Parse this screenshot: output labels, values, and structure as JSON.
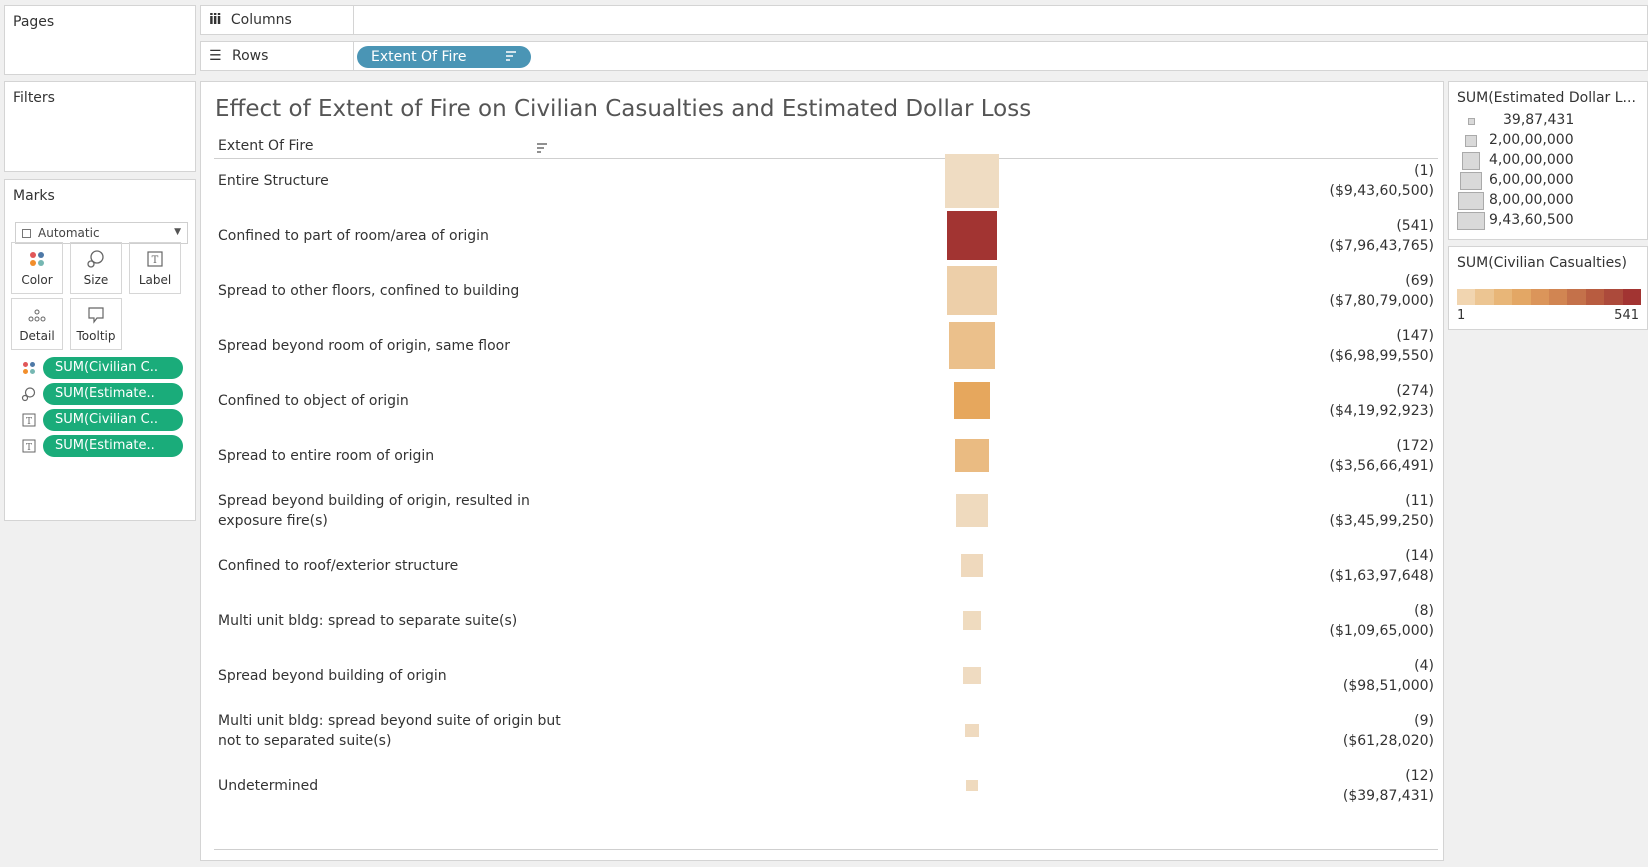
{
  "shelves": {
    "pages": "Pages",
    "filters": "Filters",
    "columns": "Columns",
    "rows": "Rows",
    "rows_pill": "Extent Of Fire"
  },
  "marks": {
    "title": "Marks",
    "type": "Automatic",
    "buttons": [
      "Color",
      "Size",
      "Label",
      "Detail",
      "Tooltip"
    ],
    "pills": [
      {
        "icon": "color-dots-icon",
        "label": "SUM(Civilian C.."
      },
      {
        "icon": "size-icon",
        "label": "SUM(Estimate.."
      },
      {
        "icon": "label-icon",
        "label": "SUM(Civilian C.."
      },
      {
        "icon": "label-icon",
        "label": "SUM(Estimate.."
      }
    ]
  },
  "viz": {
    "title": "Effect of  Extent of Fire on Civilian Casualties and Estimated Dollar Loss",
    "column_header": "Extent Of Fire"
  },
  "chart_data": {
    "type": "table",
    "rows": [
      {
        "label": "Entire Structure",
        "casualties": 1,
        "casualties_label": "(1)",
        "loss": 94360500,
        "loss_label": "($9,43,60,500)"
      },
      {
        "label": "Confined to part of room/area of origin",
        "casualties": 541,
        "casualties_label": "(541)",
        "loss": 79643765,
        "loss_label": "($7,96,43,765)"
      },
      {
        "label": "Spread to other floors, confined to building",
        "casualties": 69,
        "casualties_label": "(69)",
        "loss": 78079000,
        "loss_label": "($7,80,79,000)"
      },
      {
        "label": "Spread beyond room of origin, same floor",
        "casualties": 147,
        "casualties_label": "(147)",
        "loss": 69899550,
        "loss_label": "($6,98,99,550)"
      },
      {
        "label": "Confined to object of origin",
        "casualties": 274,
        "casualties_label": "(274)",
        "loss": 41992923,
        "loss_label": "($4,19,92,923)"
      },
      {
        "label": "Spread to entire room of origin",
        "casualties": 172,
        "casualties_label": "(172)",
        "loss": 35666491,
        "loss_label": "($3,56,66,491)"
      },
      {
        "label": "Spread beyond building of origin, resulted in exposure fire(s)",
        "casualties": 11,
        "casualties_label": "(11)",
        "loss": 34599250,
        "loss_label": "($3,45,99,250)"
      },
      {
        "label": "Confined to roof/exterior structure",
        "casualties": 14,
        "casualties_label": "(14)",
        "loss": 16397648,
        "loss_label": "($1,63,97,648)"
      },
      {
        "label": "Multi unit bldg: spread to separate suite(s)",
        "casualties": 8,
        "casualties_label": "(8)",
        "loss": 10965000,
        "loss_label": "($1,09,65,000)"
      },
      {
        "label": "Spread beyond building of origin",
        "casualties": 4,
        "casualties_label": "(4)",
        "loss": 9851000,
        "loss_label": "($98,51,000)"
      },
      {
        "label": "Multi unit bldg: spread beyond suite of origin but not to separated suite(s)",
        "casualties": 9,
        "casualties_label": "(9)",
        "loss": 6128020,
        "loss_label": "($61,28,020)"
      },
      {
        "label": "Undetermined",
        "casualties": 12,
        "casualties_label": "(12)",
        "loss": 3987431,
        "loss_label": "($39,87,431)"
      }
    ],
    "color_scale": {
      "min": 1,
      "max": 541,
      "low_color": "#efdcc2",
      "mid_color": "#e7a85d",
      "high_color": "#a23432"
    },
    "size_scale": {
      "min": 3987431,
      "max": 94360500
    }
  },
  "legends": {
    "size_title": "SUM(Estimated Dollar L...",
    "size_items": [
      {
        "label": "39,87,431",
        "value": 3987431
      },
      {
        "label": "2,00,00,000",
        "value": 20000000
      },
      {
        "label": "4,00,00,000",
        "value": 40000000
      },
      {
        "label": "6,00,00,000",
        "value": 60000000
      },
      {
        "label": "8,00,00,000",
        "value": 80000000
      },
      {
        "label": "9,43,60,500",
        "value": 94360500
      }
    ],
    "color_title": "SUM(Civilian Casualties)",
    "color_min": "1",
    "color_max": "541",
    "color_steps": [
      "#f1d5b0",
      "#ecc592",
      "#e8b678",
      "#e3a765",
      "#db955a",
      "#d18552",
      "#c4714a",
      "#b85c40",
      "#ac4a3b",
      "#a23432"
    ]
  }
}
